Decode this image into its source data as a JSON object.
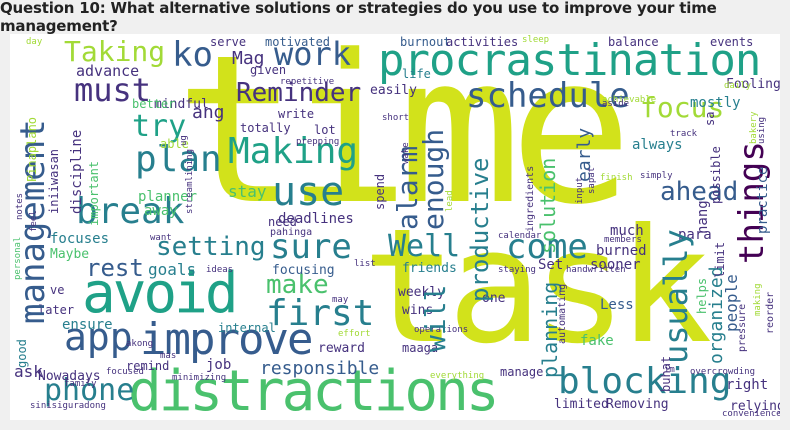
{
  "title": "Question 10: What alternative solutions or strategies do you use to improve your time management?",
  "colors": {
    "yellow": "#d2e21b",
    "lime": "#a2da37",
    "green": "#4ac16d",
    "teal": "#1fa187",
    "tealdark": "#277f8e",
    "blue": "#365c8d",
    "indigo": "#46327e",
    "purple": "#440154"
  },
  "words": {
    "time": "time",
    "task": "task",
    "distractions": "distractions",
    "procrastination": "procrastination",
    "avoid": "avoid",
    "improve": "improve",
    "management": "management",
    "schedule": "schedule",
    "work": "work",
    "use": "use",
    "making": "Making",
    "plan": "plan",
    "break": "break",
    "things": "things",
    "blocking": "blocking",
    "app": "app",
    "phone": "phone",
    "first": "first",
    "sure": "sure",
    "come": "come",
    "usually": "usually",
    "taking": "Taking",
    "must": "must",
    "ko": "ko",
    "reminder": "Reminder",
    "focus": "focus",
    "ahead": "ahead",
    "alarm": "alarm",
    "enough": "enough",
    "make": "make",
    "setting": "setting",
    "try": "try",
    "well": "Well",
    "rest": "rest",
    "productive": "productive",
    "will": "will",
    "responsible": "responsible",
    "mag": "Mag",
    "ang": "ang",
    "advance": "advance",
    "solution": "solution",
    "planning": "planning",
    "organized": "organized",
    "mindful": "mindful",
    "early": "early",
    "goals": "goals",
    "stay": "stay",
    "planner": "planner",
    "deadlines": "deadlines",
    "away": "away",
    "set": "Set",
    "burned": "burned",
    "fake": "fake",
    "ask": "ask",
    "right": "right",
    "relying": "relying",
    "nowadays": "Nowadays",
    "job": "job",
    "reward": "reward",
    "weekly": "weekly",
    "less": "Less",
    "wins": "wins",
    "people": "people",
    "much": "much",
    "para": "para",
    "sooner": "sooner",
    "ensure": "ensure",
    "manage": "manage",
    "removing": "Removing",
    "limited": "limited",
    "focuses": "focuses",
    "focusing": "focusing",
    "friends": "friends",
    "maybe": "Maybe",
    "always": "always",
    "practice": "practice",
    "mostly": "mostly",
    "fooling": "Fooling",
    "motivated": "motivated",
    "burnout": "burnout",
    "activities": "activities",
    "balance": "balance",
    "events": "events",
    "serve": "serve",
    "easily": "easily",
    "life": "life",
    "given": "given",
    "lot": "lot",
    "totally": "totally",
    "write": "write",
    "better": "better",
    "able": "able",
    "discipline": "discipline",
    "important": "important",
    "later": "later",
    "ve": "ve",
    "good": "good",
    "remind": "remind",
    "internal": "internal",
    "one": "one",
    "buhat": "buhat",
    "helps": "helps",
    "limit": "limit",
    "nang": "nang",
    "possible": "possible",
    "sa": "sa",
    "need": "need",
    "spend": "spend",
    "day": "day",
    "sleep": "sleep",
    "repetitive": "repetitive",
    "pinaplano": "Pinaplano",
    "iniiwasan": "iniiwasan",
    "prepping": "prepping",
    "short": "short",
    "wake": "wake",
    "ingredients": "ingredients",
    "input": "input",
    "sapat": "sapat",
    "finish": "finish",
    "simply": "simply",
    "track": "track",
    "achievable": "achievable",
    "aside": "aside",
    "daily": "daily",
    "bakery": "bakery",
    "using": "using",
    "streamlining": "streamlining",
    "personal": "personal",
    "notes": "notes",
    "feel": "feel",
    "want": "want",
    "pahinga": "pahinga",
    "ideas": "ideas",
    "may": "may",
    "effort": "effort",
    "list": "list",
    "calendar": "calendar",
    "members": "members",
    "staying": "staying",
    "handwritten": "handwritten",
    "automating": "automating",
    "operations": "operations",
    "maaga": "maaga",
    "im": "im",
    "overcrowding": "overcrowding",
    "convenience": "convenience",
    "reorder": "reorder",
    "pressure": "pressure",
    "making2": "making",
    "akong": "akong",
    "mas": "mas",
    "focused": "focused",
    "minimizing": "minimizing",
    "family": "family",
    "everything": "everything",
    "sinisiguradong": "sinisiguradong",
    "lead": "lead",
    "ug": "ug"
  }
}
